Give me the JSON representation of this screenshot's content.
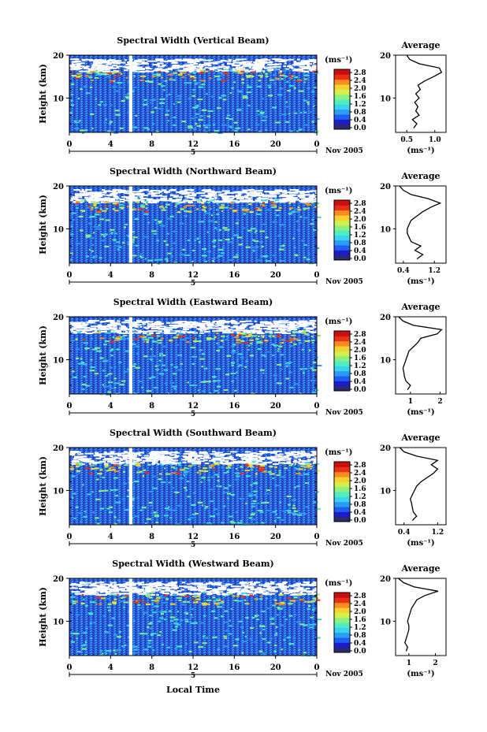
{
  "colors": {
    "scale": [
      "#2a2a6e",
      "#1c1cc8",
      "#1e5ef0",
      "#2a9cf4",
      "#3ad2ee",
      "#50eebe",
      "#8ef080",
      "#d4f04a",
      "#f8d030",
      "#f88c20",
      "#e83018",
      "#c81010"
    ],
    "background_fill": "#2a55d8",
    "axis": "#000000",
    "line": "#000000"
  },
  "shared": {
    "x_ticks": [
      "0",
      "4",
      "8",
      "12",
      "16",
      "20",
      "0"
    ],
    "y_ticks": [
      "20",
      "10"
    ],
    "y_label": "Height (km)",
    "date_day": "5",
    "date_label": "Nov 2005",
    "x_label": "Local Time",
    "colorbar_unit": "(ms⁻¹)",
    "colorbar_ticks": [
      "2.8",
      "2.4",
      "2.0",
      "1.6",
      "1.2",
      "0.8",
      "0.4",
      "0.0"
    ],
    "avg_title": "Average",
    "avg_xlabel": "(ms⁻¹)"
  },
  "chart_data": [
    {
      "type": "heatmap",
      "title": "Spectral Width (Vertical Beam)",
      "xlabel": "",
      "ylabel": "Height (km)",
      "xlim": [
        0,
        24
      ],
      "ylim": [
        2,
        20
      ],
      "colorbar_range": [
        0.0,
        2.8
      ],
      "profile": {
        "type": "line",
        "title": "Average",
        "xlabel": "(ms⁻¹)",
        "x_ticks": [
          "0.5",
          "1.0"
        ],
        "xlim": [
          0.3,
          1.2
        ],
        "ylim": [
          2,
          20
        ],
        "points": [
          [
            0.62,
            3
          ],
          [
            0.68,
            4
          ],
          [
            0.6,
            5
          ],
          [
            0.72,
            6
          ],
          [
            0.66,
            7
          ],
          [
            0.7,
            8
          ],
          [
            0.64,
            9
          ],
          [
            0.72,
            10
          ],
          [
            0.66,
            11
          ],
          [
            0.74,
            12
          ],
          [
            0.7,
            13
          ],
          [
            0.82,
            14
          ],
          [
            0.98,
            15
          ],
          [
            1.12,
            16
          ],
          [
            1.08,
            17
          ],
          [
            0.72,
            18
          ],
          [
            0.55,
            19
          ],
          [
            0.5,
            20
          ]
        ]
      }
    },
    {
      "type": "heatmap",
      "title": "Spectral Width (Northward Beam)",
      "xlabel": "",
      "ylabel": "Height (km)",
      "xlim": [
        0,
        24
      ],
      "ylim": [
        2,
        20
      ],
      "colorbar_range": [
        0.0,
        2.8
      ],
      "profile": {
        "type": "line",
        "title": "Average",
        "xlabel": "(ms⁻¹)",
        "x_ticks": [
          "0.4",
          "1.2"
        ],
        "xlim": [
          0.2,
          1.5
        ],
        "ylim": [
          2,
          20
        ],
        "points": [
          [
            0.75,
            3
          ],
          [
            0.9,
            4
          ],
          [
            0.7,
            5
          ],
          [
            0.85,
            6
          ],
          [
            0.6,
            7
          ],
          [
            0.55,
            8
          ],
          [
            0.5,
            9
          ],
          [
            0.5,
            10
          ],
          [
            0.55,
            11
          ],
          [
            0.6,
            12
          ],
          [
            0.75,
            13
          ],
          [
            0.9,
            14
          ],
          [
            1.1,
            15
          ],
          [
            1.35,
            16
          ],
          [
            1.05,
            17
          ],
          [
            0.6,
            18
          ],
          [
            0.4,
            19
          ],
          [
            0.3,
            20
          ]
        ]
      }
    },
    {
      "type": "heatmap",
      "title": "Spectral Width (Eastward Beam)",
      "xlabel": "",
      "ylabel": "Height (km)",
      "xlim": [
        0,
        24
      ],
      "ylim": [
        2,
        20
      ],
      "colorbar_range": [
        0.0,
        2.8
      ],
      "profile": {
        "type": "line",
        "title": "Average",
        "xlabel": "(ms⁻¹)",
        "x_ticks": [
          "1",
          "2"
        ],
        "xlim": [
          0.5,
          2.2
        ],
        "ylim": [
          2,
          20
        ],
        "points": [
          [
            0.9,
            3
          ],
          [
            1.0,
            4
          ],
          [
            0.85,
            5
          ],
          [
            0.8,
            6
          ],
          [
            0.78,
            7
          ],
          [
            0.75,
            8
          ],
          [
            0.8,
            9
          ],
          [
            0.85,
            10
          ],
          [
            0.9,
            11
          ],
          [
            0.95,
            12
          ],
          [
            1.1,
            13
          ],
          [
            1.25,
            14
          ],
          [
            1.35,
            15
          ],
          [
            1.9,
            16
          ],
          [
            2.05,
            17
          ],
          [
            1.1,
            18
          ],
          [
            0.75,
            19
          ],
          [
            0.6,
            20
          ]
        ]
      }
    },
    {
      "type": "heatmap",
      "title": "Spectral Width (Southward Beam)",
      "xlabel": "",
      "ylabel": "Height (km)",
      "xlim": [
        0,
        24
      ],
      "ylim": [
        2,
        20
      ],
      "colorbar_range": [
        0.0,
        2.8
      ],
      "profile": {
        "type": "line",
        "title": "Average",
        "xlabel": "(ms⁻¹)",
        "x_ticks": [
          "0.4",
          "1.2"
        ],
        "xlim": [
          0.2,
          1.4
        ],
        "ylim": [
          2,
          20
        ],
        "points": [
          [
            0.6,
            3
          ],
          [
            0.7,
            4
          ],
          [
            0.62,
            5
          ],
          [
            0.6,
            6
          ],
          [
            0.58,
            7
          ],
          [
            0.55,
            8
          ],
          [
            0.6,
            9
          ],
          [
            0.65,
            10
          ],
          [
            0.7,
            11
          ],
          [
            0.8,
            12
          ],
          [
            0.95,
            13
          ],
          [
            1.1,
            14
          ],
          [
            1.2,
            15
          ],
          [
            1.05,
            16
          ],
          [
            1.2,
            17
          ],
          [
            0.7,
            18
          ],
          [
            0.4,
            19
          ],
          [
            0.3,
            20
          ]
        ]
      }
    },
    {
      "type": "heatmap",
      "title": "Spectral Width (Westward Beam)",
      "xlabel": "Local Time",
      "ylabel": "Height (km)",
      "xlim": [
        0,
        24
      ],
      "ylim": [
        2,
        20
      ],
      "colorbar_range": [
        0.0,
        2.8
      ],
      "profile": {
        "type": "line",
        "title": "Average",
        "xlabel": "(ms⁻¹)",
        "x_ticks": [
          "1",
          "2"
        ],
        "xlim": [
          0.5,
          2.4
        ],
        "ylim": [
          2,
          20
        ],
        "points": [
          [
            0.9,
            3
          ],
          [
            0.95,
            4
          ],
          [
            0.85,
            5
          ],
          [
            0.9,
            6
          ],
          [
            0.95,
            7
          ],
          [
            1.0,
            8
          ],
          [
            1.0,
            9
          ],
          [
            0.95,
            10
          ],
          [
            1.0,
            11
          ],
          [
            1.05,
            12
          ],
          [
            1.1,
            13
          ],
          [
            1.2,
            14
          ],
          [
            1.3,
            15
          ],
          [
            1.6,
            16
          ],
          [
            2.1,
            17
          ],
          [
            1.2,
            18
          ],
          [
            0.8,
            19
          ],
          [
            0.6,
            20
          ]
        ]
      }
    }
  ]
}
